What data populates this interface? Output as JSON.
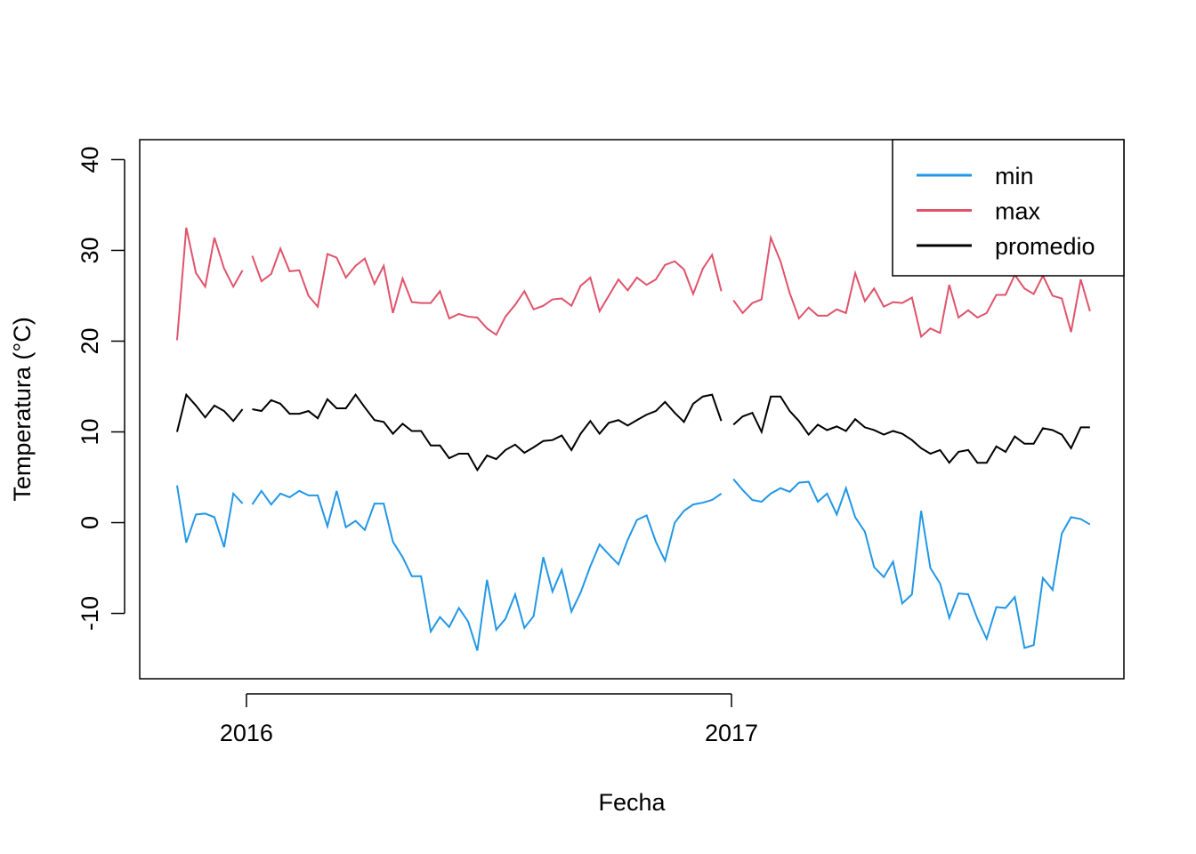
{
  "chart_data": {
    "type": "line",
    "x_label": "Fecha",
    "y_label": "Temperatura (°C)",
    "x": [
      2015.857,
      2015.876,
      2015.896,
      2015.915,
      2015.934,
      2015.954,
      2015.973,
      2015.992,
      2016.0,
      2016.012,
      2016.031,
      2016.051,
      2016.07,
      2016.089,
      2016.109,
      2016.128,
      2016.147,
      2016.167,
      2016.186,
      2016.205,
      2016.225,
      2016.244,
      2016.264,
      2016.283,
      2016.302,
      2016.322,
      2016.341,
      2016.36,
      2016.38,
      2016.399,
      2016.418,
      2016.438,
      2016.457,
      2016.476,
      2016.496,
      2016.515,
      2016.534,
      2016.554,
      2016.573,
      2016.592,
      2016.612,
      2016.631,
      2016.65,
      2016.67,
      2016.689,
      2016.709,
      2016.728,
      2016.747,
      2016.767,
      2016.786,
      2016.805,
      2016.825,
      2016.844,
      2016.863,
      2016.883,
      2016.902,
      2016.921,
      2016.941,
      2016.96,
      2016.979,
      2016.99,
      2017.004,
      2017.023,
      2017.043,
      2017.062,
      2017.081,
      2017.101,
      2017.12,
      2017.139,
      2017.159,
      2017.178,
      2017.197,
      2017.217,
      2017.236,
      2017.255,
      2017.275,
      2017.294,
      2017.314,
      2017.333,
      2017.352,
      2017.372,
      2017.391,
      2017.41,
      2017.43,
      2017.449,
      2017.468,
      2017.488,
      2017.507,
      2017.526,
      2017.546,
      2017.565,
      2017.584,
      2017.604,
      2017.623,
      2017.642,
      2017.662,
      2017.681,
      2017.7,
      2017.72,
      2017.739
    ],
    "series": [
      {
        "name": "min",
        "color": "#2297e6",
        "values": [
          4.1,
          -2.2,
          0.9,
          1,
          0.6,
          -2.7,
          3.2,
          2.1,
          null,
          2,
          3.5,
          2,
          3.2,
          2.8,
          3.5,
          3,
          3,
          -0.4,
          3.5,
          -0.5,
          0.2,
          -0.8,
          2.1,
          2.1,
          -2.1,
          -3.8,
          -5.9,
          -5.9,
          -12,
          -10.4,
          -11.5,
          -9.4,
          -10.9,
          -14.1,
          -6.3,
          -11.8,
          -10.6,
          -7.9,
          -11.6,
          -10.3,
          -3.8,
          -7.6,
          -5.2,
          -9.8,
          -7.7,
          -4.8,
          -2.4,
          -3.5,
          -4.6,
          -1.9,
          0.3,
          0.8,
          -2.1,
          -4.2,
          0,
          1.3,
          2,
          2.2,
          2.5,
          3.2,
          null,
          4.8,
          3.6,
          2.5,
          2.3,
          3.2,
          3.8,
          3.4,
          4.4,
          4.5,
          2.3,
          3.2,
          0.9,
          3.8,
          0.6,
          -1,
          -4.9,
          -6,
          -4.3,
          -8.9,
          -7.9,
          1.3,
          -5,
          -6.7,
          -10.5,
          -7.8,
          -7.9,
          -10.6,
          -12.8,
          -9.3,
          -9.4,
          -8.2,
          -13.8,
          -13.5,
          -6.1,
          -7.4,
          -1.2,
          0.6,
          0.4,
          -0.2
        ]
      },
      {
        "name": "max",
        "color": "#df536b",
        "values": [
          20.1,
          32.5,
          27.5,
          26,
          31.4,
          28,
          26,
          27.8,
          null,
          29.4,
          26.6,
          27.4,
          30.2,
          27.7,
          27.8,
          25,
          23.8,
          29.6,
          29.2,
          27,
          28.3,
          29.1,
          26.3,
          28.3,
          23.1,
          26.9,
          24.3,
          24.2,
          24.2,
          25.5,
          22.5,
          23,
          22.7,
          22.6,
          21.4,
          20.7,
          22.7,
          24,
          25.5,
          23.5,
          23.9,
          24.6,
          24.7,
          23.9,
          26.1,
          27,
          23.3,
          25,
          26.8,
          25.6,
          27,
          26.2,
          26.8,
          28.4,
          28.8,
          27.9,
          25.2,
          28,
          29.5,
          25.5,
          null,
          24.5,
          23.1,
          24.2,
          24.6,
          31.4,
          28.8,
          25.3,
          22.5,
          23.7,
          22.8,
          22.8,
          23.5,
          23.1,
          27.5,
          24.4,
          25.8,
          23.8,
          24.3,
          24.2,
          24.8,
          20.5,
          21.4,
          20.9,
          26.2,
          22.6,
          23.4,
          22.6,
          23.1,
          25.1,
          25.1,
          27.3,
          25.8,
          25.2,
          27.2,
          25,
          24.7,
          21,
          26.8,
          23.3
        ]
      },
      {
        "name": "promedio",
        "color": "#000000",
        "values": [
          10,
          14.1,
          12.9,
          11.6,
          12.9,
          12.3,
          11.2,
          12.5,
          null,
          12.5,
          12.3,
          13.5,
          13.1,
          12,
          12,
          12.3,
          11.5,
          13.6,
          12.6,
          12.6,
          14.1,
          12.7,
          11.3,
          11.1,
          9.8,
          10.9,
          10.1,
          10.1,
          8.5,
          8.5,
          7.1,
          7.6,
          7.6,
          5.8,
          7.4,
          7,
          8,
          8.6,
          7.7,
          8.3,
          9,
          9.1,
          9.6,
          8,
          9.8,
          11.2,
          9.8,
          11,
          11.3,
          10.7,
          11.3,
          11.9,
          12.3,
          13.3,
          12.1,
          11.1,
          13.1,
          13.9,
          14.1,
          11.2,
          null,
          10.8,
          11.7,
          12.1,
          10,
          13.9,
          13.9,
          12.3,
          11.2,
          9.7,
          10.8,
          10.2,
          10.6,
          10.1,
          11.4,
          10.5,
          10.2,
          9.7,
          10.1,
          9.8,
          9.1,
          8.2,
          7.6,
          8,
          6.6,
          7.8,
          8,
          6.6,
          6.6,
          8.4,
          7.8,
          9.5,
          8.7,
          8.7,
          10.4,
          10.2,
          9.7,
          8.2,
          10.5,
          10.5
        ]
      }
    ],
    "xlim": [
      2015.78,
      2017.809
    ],
    "xticks": [
      2016,
      2017
    ],
    "ylim": [
      -17.2,
      42.2
    ],
    "yticks": [
      -10,
      0,
      10,
      20,
      30,
      40
    ],
    "legend": "topright"
  }
}
